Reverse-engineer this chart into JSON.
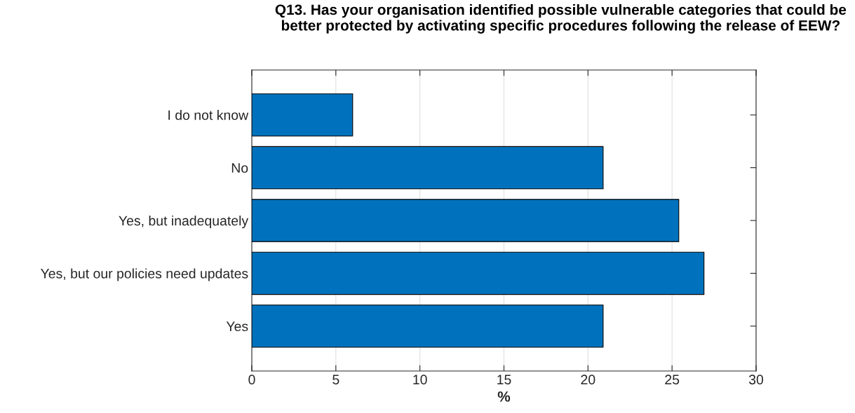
{
  "chart_data": {
    "type": "bar",
    "orientation": "horizontal",
    "title": "Q13. Has your organisation identified possible vulnerable categories that could be\nbetter protected by activating specific procedures following the release of EEW?",
    "xlabel": "%",
    "categories": [
      "I do not know",
      "No",
      "Yes, but inadequately",
      "Yes, but our policies need updates",
      "Yes"
    ],
    "values": [
      6.0,
      20.9,
      25.4,
      26.9,
      20.9
    ],
    "color": "#0072bd",
    "xlim": [
      0,
      30
    ],
    "xticks": [
      0,
      5,
      10,
      15,
      20,
      25,
      30
    ],
    "grid": "x"
  }
}
